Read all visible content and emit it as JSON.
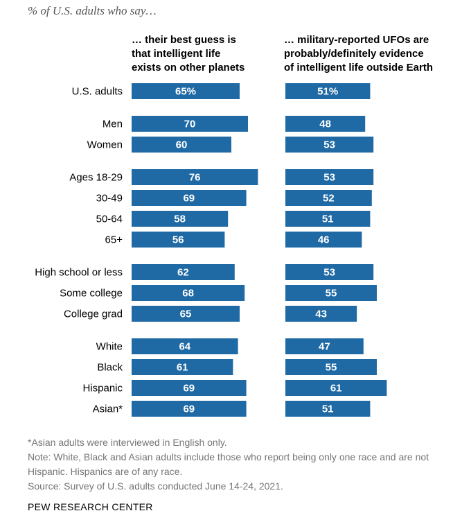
{
  "chart_data": {
    "type": "bar",
    "orientation": "horizontal",
    "subtitle": "% of U.S. adults who say…",
    "columns": [
      "… their best guess is\nthat intelligent life\nexists on other planets",
      "… military-reported UFOs are\nprobably/definitely evidence\nof intelligent life outside Earth"
    ],
    "categories": [
      "U.S. adults",
      "Men",
      "Women",
      "Ages 18-29",
      "30-49",
      "50-64",
      "65+",
      "High school or less",
      "Some college",
      "College grad",
      "White",
      "Black",
      "Hispanic",
      "Asian*"
    ],
    "groups": [
      [
        0
      ],
      [
        1,
        2
      ],
      [
        3,
        4,
        5,
        6
      ],
      [
        7,
        8,
        9
      ],
      [
        10,
        11,
        12,
        13
      ]
    ],
    "series": [
      {
        "values": [
          65,
          70,
          60,
          76,
          69,
          58,
          56,
          62,
          68,
          65,
          64,
          61,
          69,
          69
        ]
      },
      {
        "values": [
          51,
          48,
          53,
          53,
          52,
          51,
          46,
          53,
          55,
          43,
          47,
          55,
          61,
          51
        ]
      }
    ],
    "value_labels": [
      [
        "65%",
        "70",
        "60",
        "76",
        "69",
        "58",
        "56",
        "62",
        "68",
        "65",
        "64",
        "61",
        "69",
        "69"
      ],
      [
        "51%",
        "48",
        "53",
        "53",
        "52",
        "51",
        "46",
        "53",
        "55",
        "43",
        "47",
        "55",
        "61",
        "51"
      ]
    ],
    "bar_color": "#1f6aa5",
    "xlim": [
      0,
      100
    ]
  },
  "footnotes": [
    "*Asian adults were interviewed in English only.",
    "Note: White, Black and Asian adults include those who report being only one race and are not Hispanic. Hispanics are of any race.",
    "Source: Survey of U.S. adults conducted June 14-24, 2021."
  ],
  "source_org": "PEW RESEARCH CENTER"
}
